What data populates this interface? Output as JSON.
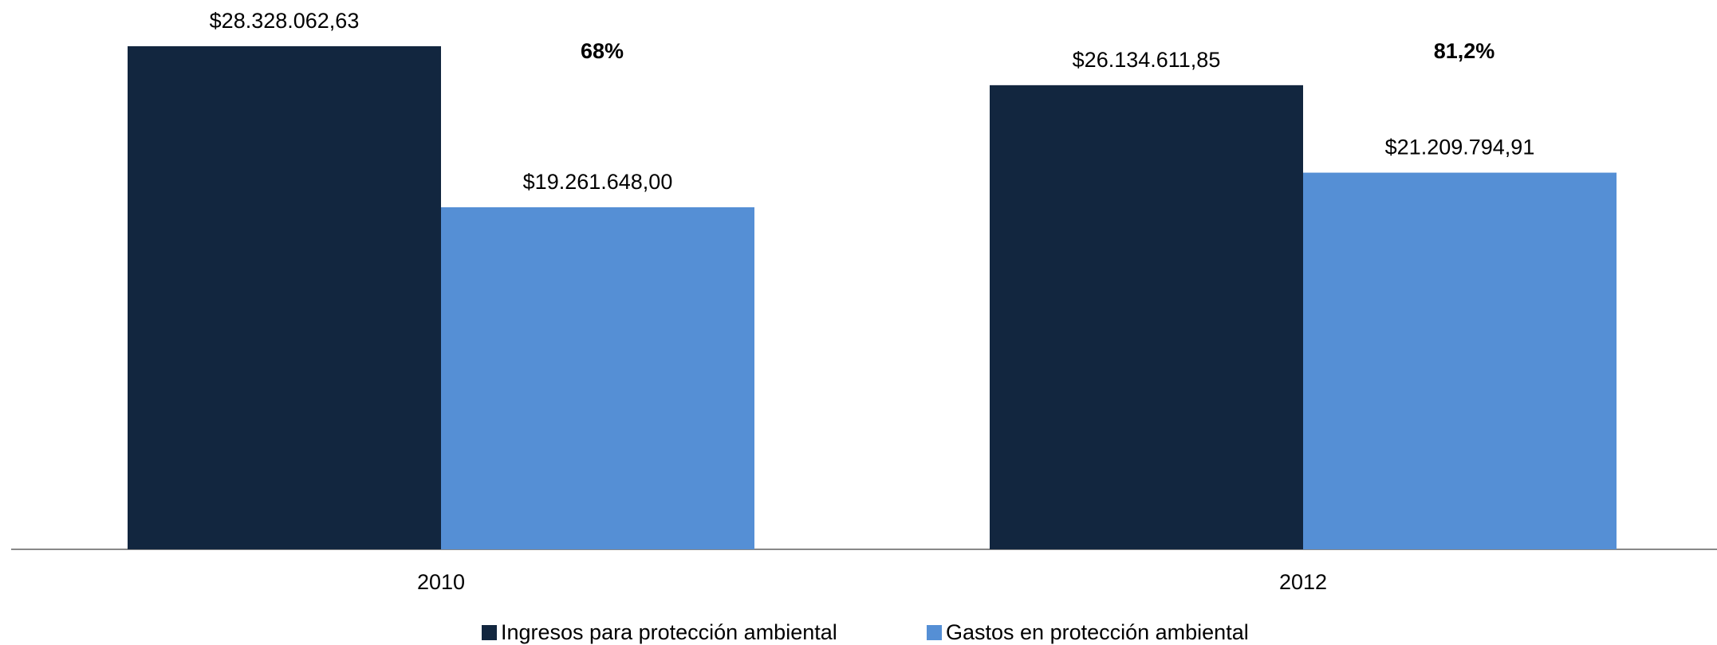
{
  "chart_data": {
    "type": "bar",
    "categories": [
      "2010",
      "2012"
    ],
    "series": [
      {
        "name": "Ingresos para protección ambiental",
        "color": "#12263f",
        "values": [
          28328062.63,
          26134611.85
        ],
        "value_labels": [
          "$28.328.062,63",
          "$26.134.611,85"
        ]
      },
      {
        "name": "Gastos en protección ambiental",
        "color": "#558fd5",
        "values": [
          19261648.0,
          21209794.91
        ],
        "value_labels": [
          "$19.261.648,00",
          "$21.209.794,91"
        ]
      }
    ],
    "annotations": [
      "68%",
      "81,2%"
    ]
  }
}
